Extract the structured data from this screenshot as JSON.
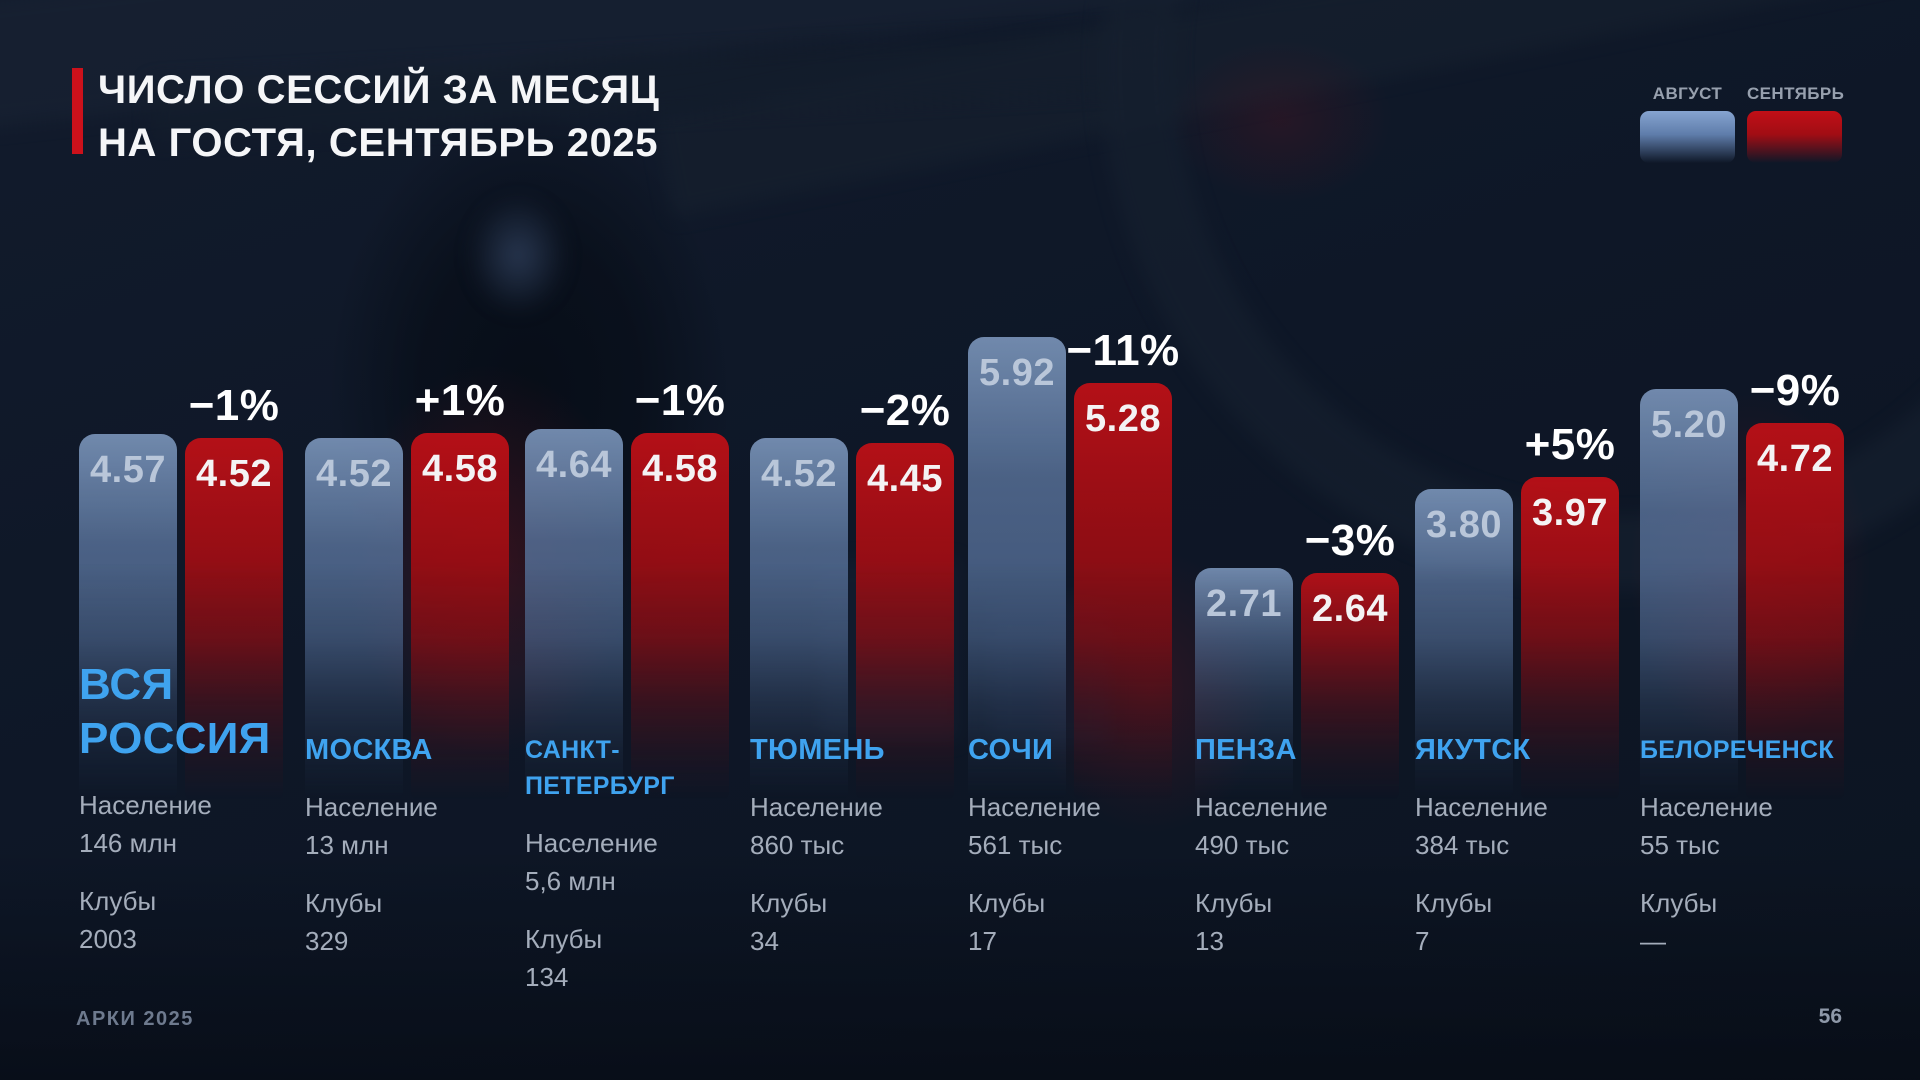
{
  "slide": {
    "title_line1": "ЧИСЛО СЕССИЙ ЗА МЕСЯЦ",
    "title_line2": "НА ГОСТЯ, СЕНТЯБРЬ 2025",
    "footer_left": "АРКИ 2025",
    "page_number": "56",
    "accent_color": "#cc111b",
    "background_color": "#0e1727",
    "city_label_color": "#3fa3ef"
  },
  "legend": {
    "august_label": "АВГУСТ",
    "september_label": "СЕНТЯБРЬ",
    "august_color": "#7d9cc9",
    "september_color": "#b8111a",
    "position": "top-right"
  },
  "chart_data": {
    "type": "bar",
    "title": "ЧИСЛО СЕССИЙ ЗА МЕСЯЦ НА ГОСТЯ, СЕНТЯБРЬ 2025",
    "xlabel": "",
    "ylabel": "",
    "ylim": [
      0,
      6.5
    ],
    "grid": false,
    "legend_position": "top-right",
    "categories": [
      "ВСЯ РОССИЯ",
      "МОСКВА",
      "САНКТ-ПЕТЕРБУРГ",
      "ТЮМЕНЬ",
      "СОЧИ",
      "ПЕНЗА",
      "ЯКУТСК",
      "БЕЛОРЕЧЕНСК"
    ],
    "series": [
      {
        "name": "АВГУСТ",
        "color": "#7d9cc9",
        "values": [
          4.57,
          4.52,
          4.64,
          4.52,
          5.92,
          2.71,
          3.8,
          5.2
        ]
      },
      {
        "name": "СЕНТЯБРЬ",
        "color": "#b8111a",
        "values": [
          4.52,
          4.58,
          4.58,
          4.45,
          5.28,
          2.64,
          3.97,
          4.72
        ]
      }
    ],
    "labels": {
      "population": "Население",
      "clubs": "Клубы"
    },
    "groups": [
      {
        "city_lines": [
          "ВСЯ",
          "РОССИЯ"
        ],
        "change": "−1%",
        "population": "146 млн",
        "clubs": "2003",
        "emphasis": true
      },
      {
        "city_lines": [
          "МОСКВА"
        ],
        "change": "+1%",
        "population": "13 млн",
        "clubs": "329",
        "emphasis": false
      },
      {
        "city_lines": [
          "САНКТ-",
          "ПЕТЕРБУРГ"
        ],
        "change": "−1%",
        "population": "5,6 млн",
        "clubs": "134",
        "emphasis": false
      },
      {
        "city_lines": [
          "ТЮМЕНЬ"
        ],
        "change": "−2%",
        "population": "860 тыс",
        "clubs": "34",
        "emphasis": false
      },
      {
        "city_lines": [
          "СОЧИ"
        ],
        "change": "−11%",
        "population": "561 тыс",
        "clubs": "17",
        "emphasis": false
      },
      {
        "city_lines": [
          "ПЕНЗА"
        ],
        "change": "−3%",
        "population": "490 тыс",
        "clubs": "13",
        "emphasis": false
      },
      {
        "city_lines": [
          "ЯКУТСК"
        ],
        "change": "+5%",
        "population": "384 тыс",
        "clubs": "7",
        "emphasis": false
      },
      {
        "city_lines": [
          "БЕЛОРЕЧЕНСК"
        ],
        "change": "−9%",
        "population": "55 тыс",
        "clubs": "—",
        "emphasis": false
      }
    ]
  }
}
